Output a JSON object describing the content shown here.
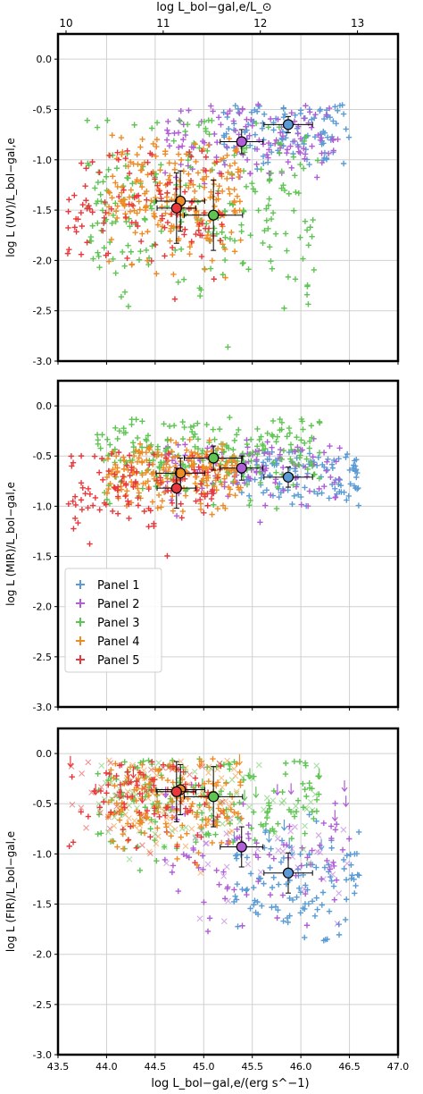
{
  "figure": {
    "top_axis_label": "log L_bol−gal,e/L_⊙",
    "bottom_axis_label": "log L_bol−gal,e/(erg s^−1)"
  },
  "colors": {
    "Panel 1": "#5b9bd5",
    "Panel 2": "#b05ed6",
    "Panel 3": "#5ec552",
    "Panel 4": "#f08a24",
    "Panel 5": "#e8383d"
  },
  "chart_data": [
    {
      "type": "scatter",
      "ylabel": "log L (UV)/L_bol−gal,e",
      "xlim": [
        43.5,
        47.0
      ],
      "ylim": [
        -3.0,
        0.25
      ],
      "xticks": [
        43.5,
        44.0,
        44.5,
        45.0,
        45.5,
        46.0,
        46.5,
        47.0
      ],
      "yticks": [
        0.0,
        -0.5,
        -1.0,
        -1.5,
        -2.0,
        -2.5,
        -3.0
      ],
      "top_xticks": [
        10,
        11,
        12,
        13
      ],
      "grid": true,
      "series": [
        {
          "name": "Panel 1",
          "centroid": {
            "x": 45.87,
            "y": -0.65
          },
          "xerr": 0.25,
          "yerr": 0.08,
          "cloud": {
            "xmin": 45.2,
            "xmax": 46.5,
            "ymin": -1.4,
            "ymax": -0.45,
            "center_y": -0.7,
            "count": 110
          }
        },
        {
          "name": "Panel 2",
          "centroid": {
            "x": 45.39,
            "y": -0.82
          },
          "xerr": 0.22,
          "yerr": 0.12,
          "cloud": {
            "xmin": 44.6,
            "xmax": 46.4,
            "ymin": -1.6,
            "ymax": -0.45,
            "center_y": -0.85,
            "count": 120
          }
        },
        {
          "name": "Panel 3",
          "centroid": {
            "x": 45.1,
            "y": -1.55
          },
          "xerr": 0.3,
          "yerr": 0.35,
          "cloud": {
            "xmin": 43.8,
            "xmax": 46.2,
            "ymin": -2.95,
            "ymax": -0.6,
            "center_y": -1.5,
            "count": 230
          }
        },
        {
          "name": "Panel 4",
          "centroid": {
            "x": 44.76,
            "y": -1.41
          },
          "xerr": 0.25,
          "yerr": 0.3,
          "cloud": {
            "xmin": 44.0,
            "xmax": 45.4,
            "ymin": -2.3,
            "ymax": -0.75,
            "center_y": -1.35,
            "count": 210
          }
        },
        {
          "name": "Panel 5",
          "centroid": {
            "x": 44.72,
            "y": -1.48
          },
          "xerr": 0.2,
          "yerr": 0.35,
          "cloud": {
            "xmin": 43.6,
            "xmax": 45.2,
            "ymin": -2.7,
            "ymax": -0.9,
            "center_y": -1.55,
            "count": 110
          }
        }
      ]
    },
    {
      "type": "scatter",
      "ylabel": "log L (MIR)/L_bol−gal,e",
      "xlim": [
        43.5,
        47.0
      ],
      "ylim": [
        -3.0,
        0.25
      ],
      "xticks": [
        43.5,
        44.0,
        44.5,
        45.0,
        45.5,
        46.0,
        46.5,
        47.0
      ],
      "yticks": [
        0.0,
        -0.5,
        -1.0,
        -1.5,
        -2.0,
        -2.5,
        -3.0
      ],
      "grid": true,
      "legend": {
        "placement": "lower-left",
        "entries": [
          "Panel 1",
          "Panel 2",
          "Panel 3",
          "Panel 4",
          "Panel 5"
        ]
      },
      "series": [
        {
          "name": "Panel 1",
          "centroid": {
            "x": 45.87,
            "y": -0.71
          },
          "xerr": 0.25,
          "yerr": 0.1,
          "cloud": {
            "xmin": 45.3,
            "xmax": 46.6,
            "ymin": -1.15,
            "ymax": -0.45,
            "center_y": -0.7,
            "count": 110
          }
        },
        {
          "name": "Panel 2",
          "centroid": {
            "x": 45.39,
            "y": -0.62
          },
          "xerr": 0.22,
          "yerr": 0.12,
          "cloud": {
            "xmin": 44.6,
            "xmax": 46.4,
            "ymin": -1.2,
            "ymax": -0.3,
            "center_y": -0.65,
            "count": 120
          }
        },
        {
          "name": "Panel 3",
          "centroid": {
            "x": 45.1,
            "y": -0.52
          },
          "xerr": 0.3,
          "yerr": 0.12,
          "cloud": {
            "xmin": 43.9,
            "xmax": 46.2,
            "ymin": -1.1,
            "ymax": -0.1,
            "center_y": -0.5,
            "count": 230
          }
        },
        {
          "name": "Panel 4",
          "centroid": {
            "x": 44.76,
            "y": -0.67
          },
          "xerr": 0.25,
          "yerr": 0.15,
          "cloud": {
            "xmin": 44.0,
            "xmax": 45.4,
            "ymin": -1.1,
            "ymax": -0.3,
            "center_y": -0.7,
            "count": 210
          }
        },
        {
          "name": "Panel 5",
          "centroid": {
            "x": 44.72,
            "y": -0.82
          },
          "xerr": 0.2,
          "yerr": 0.2,
          "cloud": {
            "xmin": 43.6,
            "xmax": 45.2,
            "ymin": -1.55,
            "ymax": -0.45,
            "center_y": -0.85,
            "count": 110
          }
        }
      ]
    },
    {
      "type": "scatter",
      "ylabel": "log L (FIR)/L_bol−gal,e",
      "xlabel": "log L_bol−gal,e/(erg s^−1)",
      "xlim": [
        43.5,
        47.0
      ],
      "ylim": [
        -3.0,
        0.25
      ],
      "xticks": [
        43.5,
        44.0,
        44.5,
        45.0,
        45.5,
        46.0,
        46.5,
        47.0
      ],
      "yticks": [
        0.0,
        -0.5,
        -1.0,
        -1.5,
        -2.0,
        -2.5,
        -3.0
      ],
      "grid": true,
      "series": [
        {
          "name": "Panel 1",
          "centroid": {
            "x": 45.87,
            "y": -1.19
          },
          "xerr": 0.25,
          "yerr": 0.2,
          "cloud": {
            "xmin": 45.3,
            "xmax": 46.6,
            "ymin": -1.9,
            "ymax": -0.6,
            "center_y": -1.3,
            "count": 110
          }
        },
        {
          "name": "Panel 2",
          "centroid": {
            "x": 45.39,
            "y": -0.93
          },
          "xerr": 0.22,
          "yerr": 0.2,
          "cloud": {
            "xmin": 44.6,
            "xmax": 46.5,
            "ymin": -1.8,
            "ymax": -0.3,
            "center_y": -1.0,
            "count": 120
          }
        },
        {
          "name": "Panel 3",
          "centroid": {
            "x": 45.1,
            "y": -0.43
          },
          "xerr": 0.3,
          "yerr": 0.3,
          "cloud": {
            "xmin": 43.9,
            "xmax": 46.2,
            "ymin": -1.3,
            "ymax": -0.05,
            "center_y": -0.5,
            "count": 230
          }
        },
        {
          "name": "Panel 4",
          "centroid": {
            "x": 44.76,
            "y": -0.36
          },
          "xerr": 0.25,
          "yerr": 0.25,
          "cloud": {
            "xmin": 44.0,
            "xmax": 45.4,
            "ymin": -1.2,
            "ymax": -0.05,
            "center_y": -0.5,
            "count": 210
          }
        },
        {
          "name": "Panel 5",
          "centroid": {
            "x": 44.72,
            "y": -0.38
          },
          "xerr": 0.2,
          "yerr": 0.3,
          "cloud": {
            "xmin": 43.6,
            "xmax": 45.2,
            "ymin": -1.3,
            "ymax": -0.05,
            "center_y": -0.45,
            "count": 110
          }
        }
      ]
    }
  ]
}
